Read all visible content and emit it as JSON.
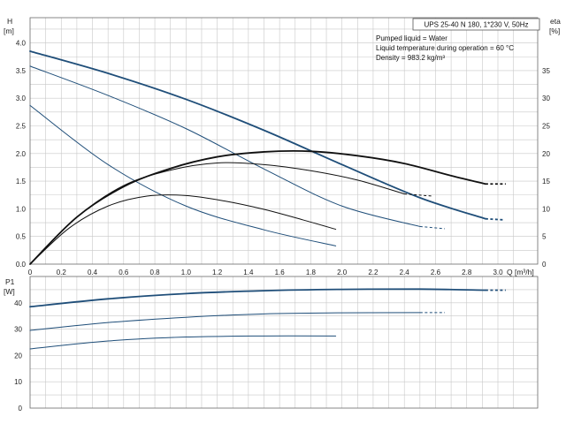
{
  "chart_data": [
    {
      "type": "line",
      "panel": "head-efficiency",
      "title": "UPS 25-40 N 180, 1*230 V, 50Hz",
      "info": [
        "Pumped liquid = Water",
        "Liquid temperature during operation = 60 °C",
        "Density = 983.2 kg/m³"
      ],
      "xlabel": "Q [m³/h]",
      "ylabel_line1": "H",
      "ylabel_line2": "[m]",
      "y2label_line1": "eta",
      "y2label_line2": "[%]",
      "xlim": [
        0,
        3.0
      ],
      "ylim": [
        0,
        4.0
      ],
      "y2lim": [
        0,
        40
      ],
      "x_ticks": [
        "0",
        "0.2",
        "0.4",
        "0.6",
        "0.8",
        "1.0",
        "1.2",
        "1.4",
        "1.6",
        "1.8",
        "2.0",
        "2.2",
        "2.4",
        "2.6",
        "2.8",
        "3.0"
      ],
      "y_ticks": [
        "0.0",
        "0.5",
        "1.0",
        "1.5",
        "2.0",
        "2.5",
        "3.0",
        "3.5",
        "4.0"
      ],
      "y2_ticks": [
        "0",
        "5",
        "10",
        "15",
        "20",
        "25",
        "30",
        "35"
      ],
      "grid": true,
      "series": [
        {
          "kind": "head",
          "axis": "left",
          "color": "#1f4e79",
          "width": 1.8,
          "x": [
            0,
            0.5,
            1.0,
            1.5,
            2.0,
            2.5,
            2.92
          ],
          "y": [
            3.85,
            3.45,
            2.98,
            2.42,
            1.8,
            1.2,
            0.82
          ],
          "dash_x": [
            2.92,
            3.04
          ],
          "dash_y": [
            0.82,
            0.8
          ]
        },
        {
          "kind": "head",
          "axis": "left",
          "color": "#1f4e79",
          "width": 1.0,
          "x": [
            0,
            0.5,
            1.0,
            1.5,
            2.0,
            2.5
          ],
          "y": [
            3.58,
            3.05,
            2.45,
            1.72,
            1.05,
            0.68
          ],
          "dash_x": [
            2.5,
            2.66
          ],
          "dash_y": [
            0.68,
            0.64
          ]
        },
        {
          "kind": "head",
          "axis": "left",
          "color": "#1f4e79",
          "width": 1.0,
          "x": [
            0,
            0.5,
            1.0,
            1.5,
            1.96
          ],
          "y": [
            2.87,
            1.8,
            1.05,
            0.62,
            0.33
          ]
        },
        {
          "kind": "efficiency",
          "axis": "right",
          "color": "#111111",
          "width": 1.8,
          "x": [
            0,
            0.3,
            0.6,
            0.9,
            1.2,
            1.5,
            1.8,
            2.1,
            2.4,
            2.7,
            2.92
          ],
          "y": [
            0,
            8.5,
            14.0,
            17.3,
            19.4,
            20.3,
            20.4,
            19.6,
            18.2,
            16.0,
            14.5
          ],
          "dash_x": [
            2.92,
            3.05
          ],
          "dash_y": [
            14.5,
            14.5
          ]
        },
        {
          "kind": "efficiency",
          "axis": "right",
          "color": "#111111",
          "width": 1.0,
          "x": [
            0,
            0.3,
            0.6,
            0.9,
            1.2,
            1.5,
            1.8,
            2.1,
            2.4
          ],
          "y": [
            0,
            8.5,
            14.2,
            17.0,
            18.3,
            18.0,
            16.9,
            15.2,
            12.7
          ],
          "dash_x": [
            2.4,
            2.58
          ],
          "dash_y": [
            12.7,
            12.3
          ]
        },
        {
          "kind": "efficiency",
          "axis": "right",
          "color": "#111111",
          "width": 1.0,
          "x": [
            0,
            0.25,
            0.5,
            0.75,
            1.0,
            1.25,
            1.5,
            1.75,
            1.96
          ],
          "y": [
            0,
            6.5,
            10.5,
            12.3,
            12.4,
            11.4,
            9.9,
            8.0,
            6.3
          ]
        }
      ]
    },
    {
      "type": "line",
      "panel": "power",
      "ylabel_line1": "P1",
      "ylabel_line2": "[W]",
      "xlim": [
        0,
        3.0
      ],
      "ylim": [
        0,
        50
      ],
      "y_ticks": [
        "0",
        "10",
        "20",
        "30",
        "40"
      ],
      "grid": true,
      "series": [
        {
          "kind": "power",
          "color": "#1f4e79",
          "width": 1.8,
          "x": [
            0,
            0.5,
            1.0,
            1.5,
            2.0,
            2.5,
            2.92
          ],
          "y": [
            38.5,
            41.5,
            43.5,
            44.6,
            45.1,
            45.2,
            44.8
          ],
          "dash_x": [
            2.92,
            3.05
          ],
          "dash_y": [
            44.8,
            44.8
          ]
        },
        {
          "kind": "power",
          "color": "#1f4e79",
          "width": 1.0,
          "x": [
            0,
            0.5,
            1.0,
            1.5,
            2.0,
            2.5
          ],
          "y": [
            29.5,
            32.5,
            34.5,
            35.8,
            36.2,
            36.3
          ],
          "dash_x": [
            2.5,
            2.66
          ],
          "dash_y": [
            36.3,
            36.3
          ]
        },
        {
          "kind": "power",
          "color": "#1f4e79",
          "width": 1.0,
          "x": [
            0,
            0.5,
            1.0,
            1.5,
            1.96
          ],
          "y": [
            22.5,
            25.5,
            27.0,
            27.4,
            27.4
          ]
        }
      ]
    }
  ]
}
